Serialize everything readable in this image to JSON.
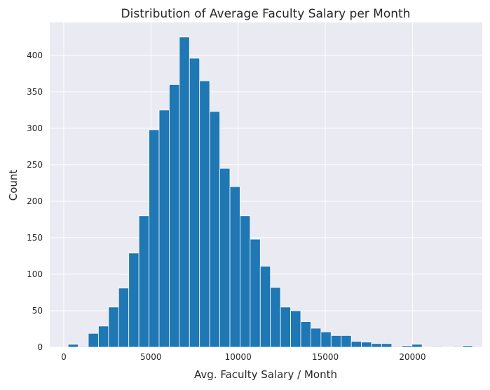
{
  "chart_data": {
    "type": "bar",
    "title": "Distribution of Average Faculty Salary per Month",
    "xlabel": "Avg. Faculty Salary / Month",
    "ylabel": "Count",
    "xlim": [
      -800,
      24000
    ],
    "ylim": [
      0,
      445
    ],
    "xticks": [
      0,
      5000,
      10000,
      15000,
      20000
    ],
    "yticks": [
      0,
      50,
      100,
      150,
      200,
      250,
      300,
      350,
      400
    ],
    "grid": true,
    "legend": "none",
    "colors": {
      "bar": "#1f77b4",
      "bar_edge": "#ffffff",
      "plot_background": "#eaeaf2",
      "grid": "#ffffff"
    },
    "bins": [
      {
        "start": 250,
        "end": 830,
        "count": 4
      },
      {
        "start": 830,
        "end": 1410,
        "count": 1
      },
      {
        "start": 1410,
        "end": 1990,
        "count": 19
      },
      {
        "start": 1990,
        "end": 2570,
        "count": 29
      },
      {
        "start": 2570,
        "end": 3150,
        "count": 55
      },
      {
        "start": 3150,
        "end": 3730,
        "count": 81
      },
      {
        "start": 3730,
        "end": 4310,
        "count": 129
      },
      {
        "start": 4310,
        "end": 4890,
        "count": 180
      },
      {
        "start": 4890,
        "end": 5470,
        "count": 298
      },
      {
        "start": 5470,
        "end": 6050,
        "count": 325
      },
      {
        "start": 6050,
        "end": 6630,
        "count": 360
      },
      {
        "start": 6630,
        "end": 7210,
        "count": 425
      },
      {
        "start": 7210,
        "end": 7790,
        "count": 396
      },
      {
        "start": 7790,
        "end": 8370,
        "count": 365
      },
      {
        "start": 8370,
        "end": 8950,
        "count": 323
      },
      {
        "start": 8950,
        "end": 9530,
        "count": 245
      },
      {
        "start": 9530,
        "end": 10110,
        "count": 220
      },
      {
        "start": 10110,
        "end": 10690,
        "count": 180
      },
      {
        "start": 10690,
        "end": 11270,
        "count": 148
      },
      {
        "start": 11270,
        "end": 11850,
        "count": 111
      },
      {
        "start": 11850,
        "end": 12430,
        "count": 82
      },
      {
        "start": 12430,
        "end": 13010,
        "count": 55
      },
      {
        "start": 13010,
        "end": 13590,
        "count": 50
      },
      {
        "start": 13590,
        "end": 14170,
        "count": 35
      },
      {
        "start": 14170,
        "end": 14750,
        "count": 26
      },
      {
        "start": 14750,
        "end": 15330,
        "count": 21
      },
      {
        "start": 15330,
        "end": 15910,
        "count": 16
      },
      {
        "start": 15910,
        "end": 16490,
        "count": 16
      },
      {
        "start": 16490,
        "end": 17070,
        "count": 8
      },
      {
        "start": 17070,
        "end": 17650,
        "count": 7
      },
      {
        "start": 17650,
        "end": 18230,
        "count": 5
      },
      {
        "start": 18230,
        "end": 18810,
        "count": 5
      },
      {
        "start": 18810,
        "end": 19390,
        "count": 1
      },
      {
        "start": 19390,
        "end": 19970,
        "count": 2
      },
      {
        "start": 19970,
        "end": 20550,
        "count": 4
      },
      {
        "start": 20550,
        "end": 21130,
        "count": 0
      },
      {
        "start": 21130,
        "end": 21710,
        "count": 1
      },
      {
        "start": 21710,
        "end": 22290,
        "count": 0
      },
      {
        "start": 22290,
        "end": 22870,
        "count": 1
      },
      {
        "start": 22870,
        "end": 23450,
        "count": 2
      }
    ]
  }
}
